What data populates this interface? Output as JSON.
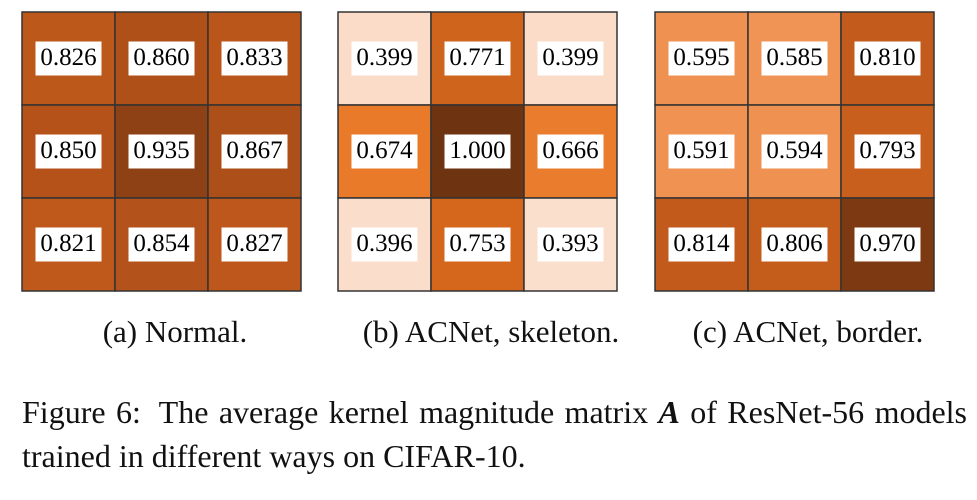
{
  "chart_data": [
    {
      "type": "heatmap",
      "caption": "(a) Normal.",
      "rows": 3,
      "cols": 3,
      "values": [
        [
          0.826,
          0.86,
          0.833
        ],
        [
          0.85,
          0.935,
          0.867
        ],
        [
          0.821,
          0.854,
          0.827
        ]
      ],
      "labels": [
        [
          "0.826",
          "0.860",
          "0.833"
        ],
        [
          "0.850",
          "0.935",
          "0.867"
        ],
        [
          "0.821",
          "0.854",
          "0.827"
        ]
      ]
    },
    {
      "type": "heatmap",
      "caption": "(b) ACNet, skeleton.",
      "rows": 3,
      "cols": 3,
      "values": [
        [
          0.399,
          0.771,
          0.399
        ],
        [
          0.674,
          1.0,
          0.666
        ],
        [
          0.396,
          0.753,
          0.393
        ]
      ],
      "labels": [
        [
          "0.399",
          "0.771",
          "0.399"
        ],
        [
          "0.674",
          "1.000",
          "0.666"
        ],
        [
          "0.396",
          "0.753",
          "0.393"
        ]
      ]
    },
    {
      "type": "heatmap",
      "caption": "(c) ACNet, border.",
      "rows": 3,
      "cols": 3,
      "values": [
        [
          0.595,
          0.585,
          0.81
        ],
        [
          0.591,
          0.594,
          0.793
        ],
        [
          0.814,
          0.806,
          0.97
        ]
      ],
      "labels": [
        [
          "0.595",
          "0.585",
          "0.810"
        ],
        [
          "0.591",
          "0.594",
          "0.793"
        ],
        [
          "0.814",
          "0.806",
          "0.970"
        ]
      ]
    }
  ],
  "colors": {
    "scale": [
      "#fbe0cf",
      "#f2a06a",
      "#e8741f",
      "#b6531a",
      "#6e3310"
    ],
    "grid_line": "#333333"
  },
  "caption": {
    "label": "Figure 6:",
    "text_before": "The average kernel magnitude matrix",
    "symbol": "A",
    "text_after": "of ResNet-56 models trained in different ways on CIFAR-10."
  }
}
